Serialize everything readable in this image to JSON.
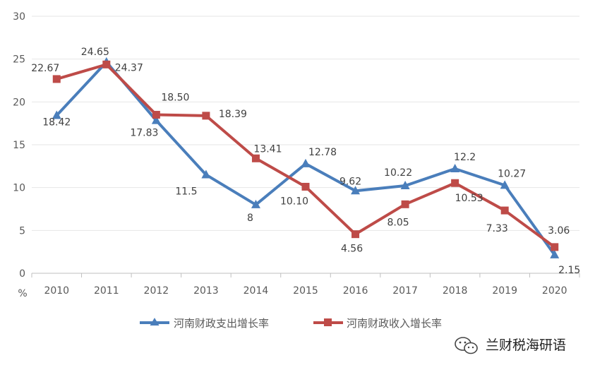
{
  "chart_data": {
    "type": "line",
    "categories": [
      "2010",
      "2011",
      "2012",
      "2013",
      "2014",
      "2015",
      "2016",
      "2017",
      "2018",
      "2019",
      "2020"
    ],
    "series": [
      {
        "name": "河南财政支出增长率",
        "color": "#4a7ebb",
        "marker": "triangle",
        "values": [
          18.42,
          24.65,
          17.83,
          11.5,
          8,
          12.78,
          9.62,
          10.22,
          12.2,
          10.27,
          2.15
        ],
        "labels": [
          "18.42",
          "24.65",
          "17.83",
          "11.5",
          "8",
          "12.78",
          "9.62",
          "10.22",
          "12.2",
          "10.27",
          "2.15"
        ]
      },
      {
        "name": "河南财政收入增长率",
        "color": "#be4b48",
        "marker": "square",
        "values": [
          22.67,
          24.37,
          18.5,
          18.39,
          13.41,
          10.1,
          4.56,
          8.05,
          10.53,
          7.33,
          3.06
        ],
        "labels": [
          "22.67",
          "24.37",
          "18.50",
          "18.39",
          "13.41",
          "10.10",
          "4.56",
          "8.05",
          "10.53",
          "7.33",
          "3.06"
        ]
      }
    ],
    "ylim": [
      0,
      30
    ],
    "yticks": [
      "0",
      "5",
      "10",
      "15",
      "20",
      "25",
      "30"
    ],
    "yunit": "%",
    "grid": true,
    "legend": "bottom"
  },
  "watermark": {
    "icon": "wechat-icon",
    "text": "兰财税海研语"
  }
}
